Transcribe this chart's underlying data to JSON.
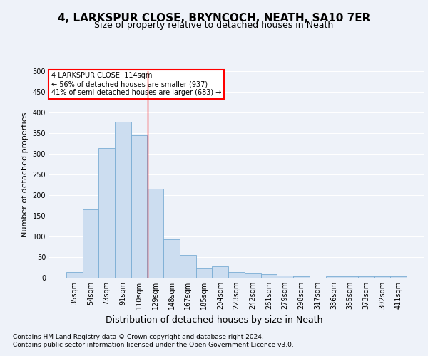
{
  "title": "4, LARKSPUR CLOSE, BRYNCOCH, NEATH, SA10 7ER",
  "subtitle": "Size of property relative to detached houses in Neath",
  "xlabel": "Distribution of detached houses by size in Neath",
  "ylabel": "Number of detached properties",
  "bar_color": "#ccddf0",
  "bar_edge_color": "#7aadd4",
  "categories": [
    "35sqm",
    "54sqm",
    "73sqm",
    "91sqm",
    "110sqm",
    "129sqm",
    "148sqm",
    "167sqm",
    "185sqm",
    "204sqm",
    "223sqm",
    "242sqm",
    "261sqm",
    "279sqm",
    "298sqm",
    "317sqm",
    "336sqm",
    "355sqm",
    "373sqm",
    "392sqm",
    "411sqm"
  ],
  "values": [
    13,
    165,
    313,
    377,
    345,
    215,
    93,
    55,
    23,
    27,
    13,
    10,
    8,
    6,
    3,
    0,
    3,
    3,
    3,
    3,
    3
  ],
  "ylim": [
    0,
    500
  ],
  "yticks": [
    0,
    50,
    100,
    150,
    200,
    250,
    300,
    350,
    400,
    450,
    500
  ],
  "property_label": "4 LARKSPUR CLOSE: 114sqm",
  "pct_smaller": 56,
  "n_smaller": 937,
  "pct_larger_semi": 41,
  "n_larger_semi": 683,
  "vline_bin_index": 4,
  "title_fontsize": 11,
  "subtitle_fontsize": 9,
  "xlabel_fontsize": 9,
  "ylabel_fontsize": 8,
  "tick_fontsize": 7,
  "annot_fontsize": 7,
  "footer_line1": "Contains HM Land Registry data © Crown copyright and database right 2024.",
  "footer_line2": "Contains public sector information licensed under the Open Government Licence v3.0.",
  "background_color": "#eef2f9",
  "plot_bg_color": "#eef2f9",
  "grid_color": "#ffffff"
}
